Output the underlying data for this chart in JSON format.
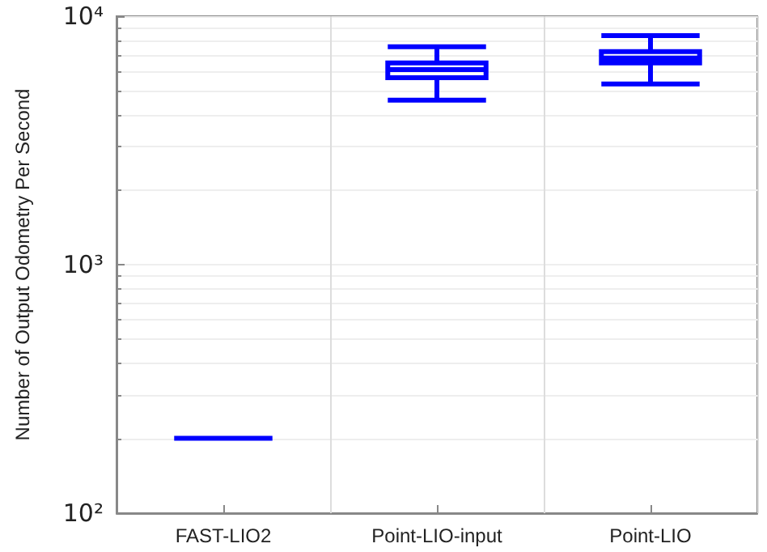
{
  "chart_data": {
    "type": "box",
    "ylabel": "Number of Output Odometry Per Second",
    "categories": [
      "FAST-LIO2",
      "Point-LIO-input",
      "Point-LIO"
    ],
    "boxes": [
      {
        "low": 200,
        "q1": 200,
        "median": 200,
        "q3": 200,
        "high": 200
      },
      {
        "low": 4590,
        "q1": 5660,
        "median": 6100,
        "q3": 6490,
        "high": 7540
      },
      {
        "low": 5340,
        "q1": 6490,
        "median": 6780,
        "q3": 7200,
        "high": 8360
      }
    ],
    "color": "#0000ff",
    "log": "y",
    "ylim": [
      100,
      10000
    ],
    "yticks": [
      {
        "value": 100,
        "label": "10²"
      },
      {
        "value": 1000,
        "label": "10³"
      },
      {
        "value": 10000,
        "label": "10⁴"
      }
    ],
    "grid": true
  }
}
